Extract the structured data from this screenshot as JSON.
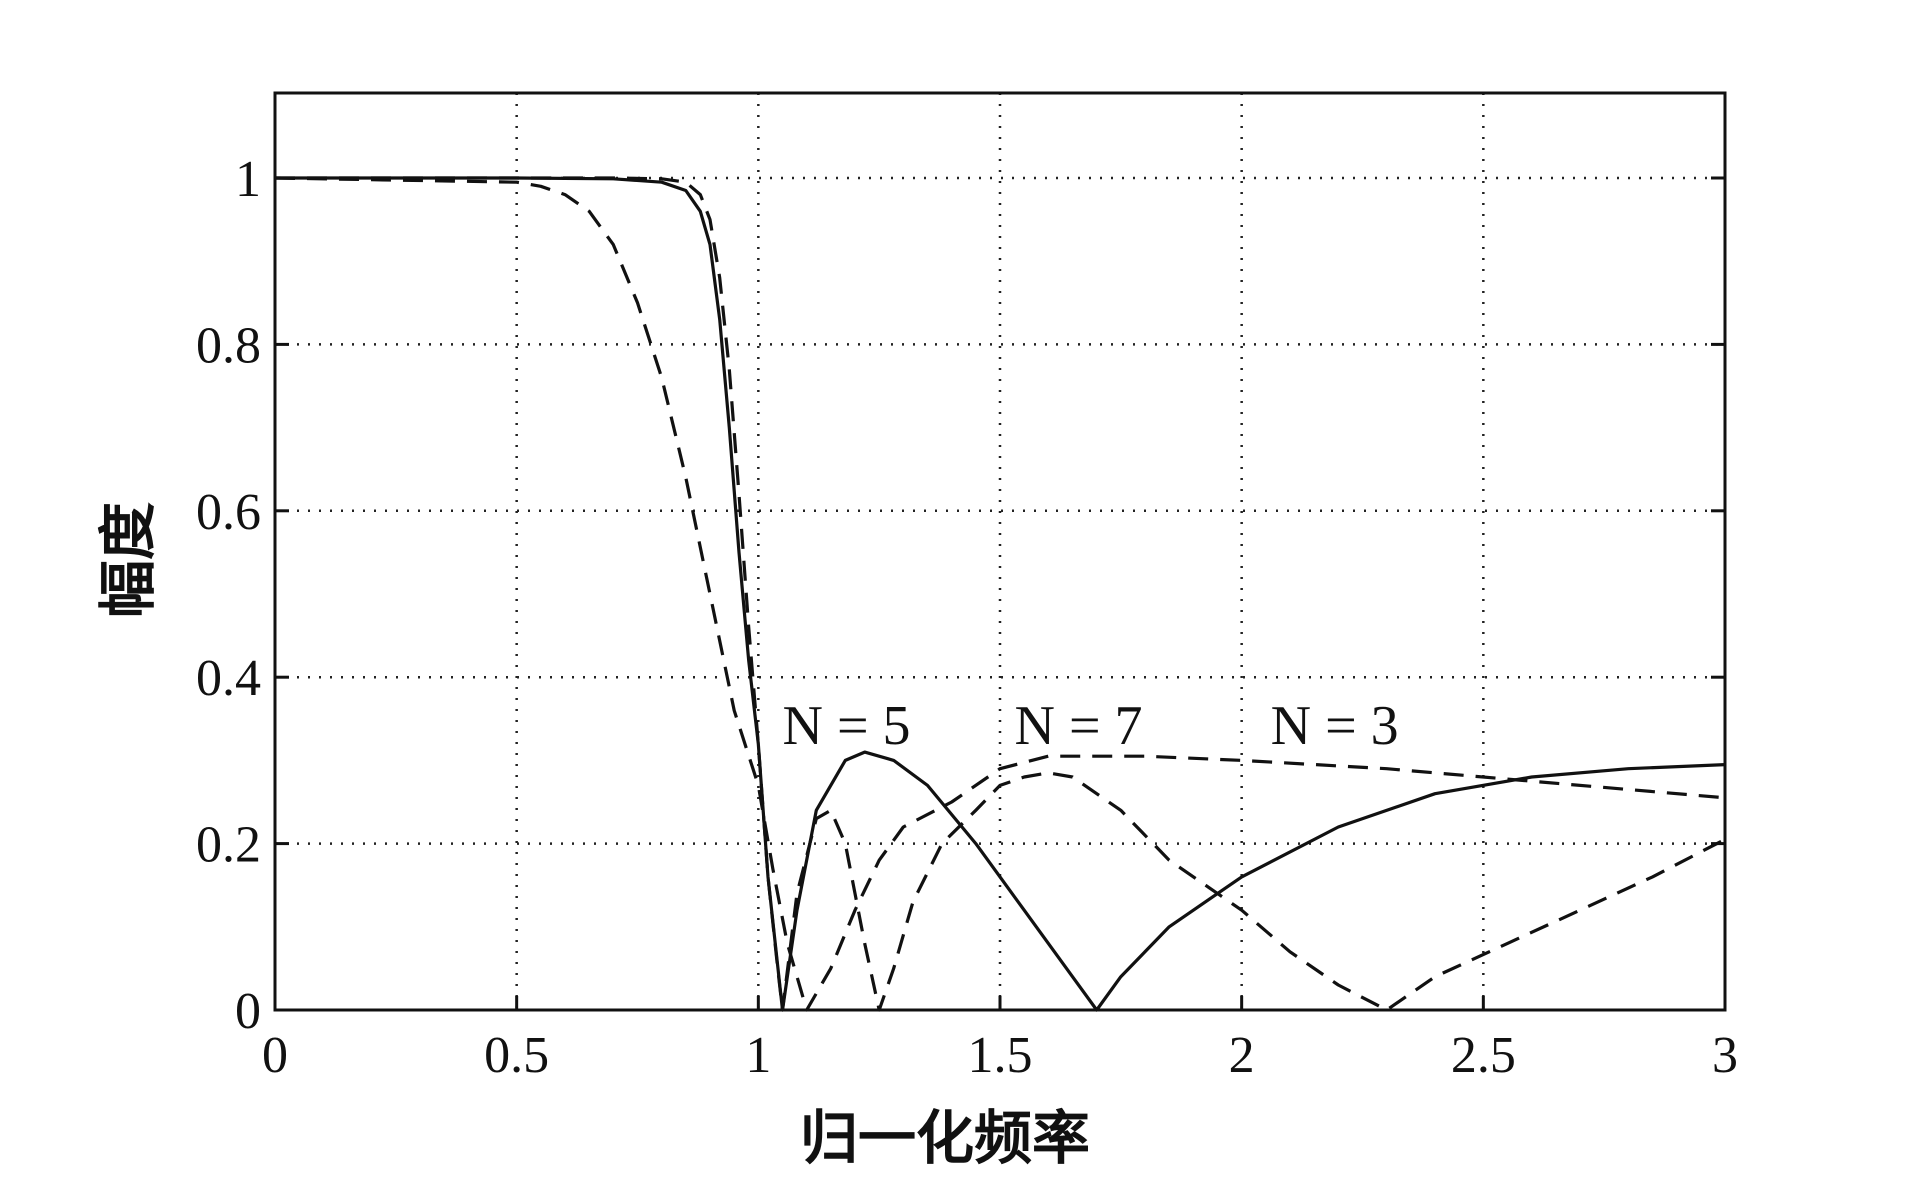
{
  "chart_data": {
    "type": "line",
    "title": "",
    "xlabel": "归一化频率",
    "ylabel": "幅度",
    "xlim": [
      0,
      3
    ],
    "ylim": [
      0,
      1
    ],
    "grid": true,
    "x_ticks": [
      "0",
      "0.5",
      "1",
      "1.5",
      "2",
      "2.5",
      "3"
    ],
    "y_ticks": [
      "0",
      "0.2",
      "0.4",
      "0.6",
      "0.8",
      "1"
    ],
    "annotations": [
      {
        "text": "N = 5",
        "x": 1.05,
        "y": 0.31
      },
      {
        "text": "N = 7",
        "x": 1.53,
        "y": 0.31
      },
      {
        "text": "N = 3",
        "x": 2.06,
        "y": 0.31
      }
    ],
    "series": [
      {
        "style": "solid",
        "color": "#111111",
        "points": [
          [
            0,
            1.0
          ],
          [
            0.5,
            1.0
          ],
          [
            0.7,
            0.999
          ],
          [
            0.8,
            0.995
          ],
          [
            0.85,
            0.985
          ],
          [
            0.88,
            0.96
          ],
          [
            0.9,
            0.92
          ],
          [
            0.92,
            0.83
          ],
          [
            0.94,
            0.7
          ],
          [
            0.96,
            0.55
          ],
          [
            0.98,
            0.42
          ],
          [
            1.0,
            0.32
          ],
          [
            1.02,
            0.16
          ],
          [
            1.05,
            0.0
          ],
          [
            1.08,
            0.12
          ],
          [
            1.12,
            0.24
          ],
          [
            1.18,
            0.3
          ],
          [
            1.22,
            0.31
          ],
          [
            1.28,
            0.3
          ],
          [
            1.35,
            0.27
          ],
          [
            1.45,
            0.2
          ],
          [
            1.55,
            0.12
          ],
          [
            1.65,
            0.04
          ],
          [
            1.7,
            0.0
          ],
          [
            1.75,
            0.04
          ],
          [
            1.85,
            0.1
          ],
          [
            2.0,
            0.16
          ],
          [
            2.2,
            0.22
          ],
          [
            2.4,
            0.26
          ],
          [
            2.6,
            0.28
          ],
          [
            2.8,
            0.29
          ],
          [
            3.0,
            0.295
          ]
        ]
      },
      {
        "style": "dashed",
        "color": "#111111",
        "points": [
          [
            0,
            1.0
          ],
          [
            0.5,
            0.995
          ],
          [
            0.55,
            0.99
          ],
          [
            0.6,
            0.98
          ],
          [
            0.65,
            0.96
          ],
          [
            0.7,
            0.92
          ],
          [
            0.75,
            0.85
          ],
          [
            0.8,
            0.76
          ],
          [
            0.85,
            0.64
          ],
          [
            0.9,
            0.5
          ],
          [
            0.95,
            0.36
          ],
          [
            1.0,
            0.27
          ],
          [
            1.03,
            0.17
          ],
          [
            1.06,
            0.08
          ],
          [
            1.1,
            0.0
          ],
          [
            1.15,
            0.05
          ],
          [
            1.2,
            0.12
          ],
          [
            1.25,
            0.18
          ],
          [
            1.3,
            0.22
          ],
          [
            1.4,
            0.25
          ],
          [
            1.5,
            0.29
          ],
          [
            1.6,
            0.305
          ],
          [
            1.8,
            0.305
          ],
          [
            2.0,
            0.3
          ],
          [
            2.3,
            0.29
          ],
          [
            2.6,
            0.275
          ],
          [
            2.8,
            0.265
          ],
          [
            3.0,
            0.255
          ]
        ]
      },
      {
        "style": "dashed",
        "color": "#111111",
        "points": [
          [
            0,
            1.0
          ],
          [
            0.7,
            1.0
          ],
          [
            0.8,
            0.999
          ],
          [
            0.85,
            0.995
          ],
          [
            0.88,
            0.98
          ],
          [
            0.9,
            0.95
          ],
          [
            0.92,
            0.88
          ],
          [
            0.94,
            0.77
          ],
          [
            0.96,
            0.62
          ],
          [
            0.98,
            0.46
          ],
          [
            1.0,
            0.32
          ],
          [
            1.02,
            0.16
          ],
          [
            1.04,
            0.05
          ],
          [
            1.05,
            0.0
          ],
          [
            1.08,
            0.14
          ],
          [
            1.12,
            0.23
          ],
          [
            1.15,
            0.24
          ],
          [
            1.18,
            0.2
          ],
          [
            1.22,
            0.08
          ],
          [
            1.25,
            0.0
          ],
          [
            1.28,
            0.05
          ],
          [
            1.32,
            0.13
          ],
          [
            1.38,
            0.2
          ],
          [
            1.45,
            0.24
          ],
          [
            1.5,
            0.27
          ],
          [
            1.55,
            0.28
          ],
          [
            1.6,
            0.285
          ],
          [
            1.65,
            0.28
          ],
          [
            1.75,
            0.24
          ],
          [
            1.85,
            0.18
          ],
          [
            2.0,
            0.12
          ],
          [
            2.1,
            0.07
          ],
          [
            2.2,
            0.03
          ],
          [
            2.3,
            0.0
          ],
          [
            2.4,
            0.04
          ],
          [
            2.55,
            0.08
          ],
          [
            2.7,
            0.12
          ],
          [
            2.85,
            0.16
          ],
          [
            3.0,
            0.205
          ]
        ]
      }
    ]
  }
}
